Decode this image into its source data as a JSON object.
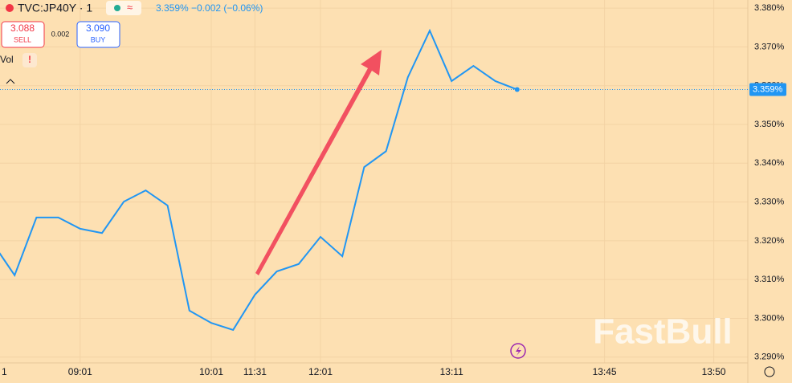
{
  "chart_data": {
    "type": "line",
    "title": "TVC:JP40Y · 1",
    "quote": {
      "last": "3.359%",
      "change": "−0.002 (−0.06%)"
    },
    "sell": {
      "price": "3.088",
      "label": "SELL"
    },
    "spread": "0.002",
    "buy": {
      "price": "3.090",
      "label": "BUY"
    },
    "volume_label": "Vol",
    "volume_alert": "!",
    "watermark": "FastBull",
    "categories": [
      "1",
      null,
      null,
      null,
      "09:01",
      null,
      null,
      null,
      null,
      null,
      "10:01",
      null,
      "11:31",
      null,
      null,
      "12:01",
      null,
      null,
      null,
      null,
      null,
      "13:11",
      null,
      null,
      null,
      null,
      null,
      null,
      "13:45",
      null,
      null,
      null,
      null,
      "13:50"
    ],
    "series": [
      {
        "name": "TVC:JP40Y",
        "color": "#2196f3",
        "values": [
          3.3194,
          3.3111,
          3.326,
          3.326,
          3.3231,
          3.322,
          3.3301,
          3.333,
          3.3291,
          3.302,
          3.2988,
          3.297,
          3.3061,
          3.3121,
          3.314,
          3.321,
          3.316,
          3.339,
          3.3431,
          3.3622,
          3.3742,
          3.3612,
          3.3651,
          3.3612,
          3.359,
          null,
          null,
          null,
          null,
          null,
          null,
          null,
          null,
          null
        ]
      }
    ],
    "ylim": [
      3.2885,
      3.3821
    ],
    "yticks": [
      {
        "value": 3.29,
        "label": "3.290%"
      },
      {
        "value": 3.3,
        "label": "3.300%"
      },
      {
        "value": 3.31,
        "label": "3.310%"
      },
      {
        "value": 3.32,
        "label": "3.320%"
      },
      {
        "value": 3.33,
        "label": "3.330%"
      },
      {
        "value": 3.34,
        "label": "3.340%"
      },
      {
        "value": 3.35,
        "label": "3.350%"
      },
      {
        "value": 3.36,
        "label": "3.360%"
      },
      {
        "value": 3.37,
        "label": "3.370%"
      },
      {
        "value": 3.38,
        "label": "3.380%"
      }
    ],
    "grid": true,
    "background": "#fde0b2"
  }
}
